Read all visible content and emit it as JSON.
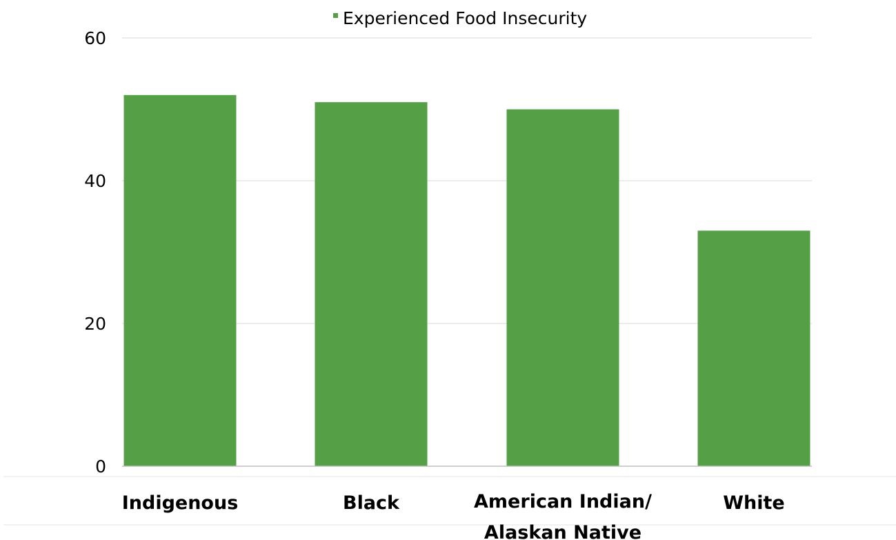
{
  "chart_data": {
    "type": "bar",
    "categories": [
      [
        "Indigenous"
      ],
      [
        "Black"
      ],
      [
        "American Indian/",
        "Alaskan Native"
      ],
      [
        "White"
      ]
    ],
    "series": [
      {
        "name": "Experienced Food Insecurity",
        "values": [
          52,
          51,
          50,
          33
        ],
        "color": "#55a047"
      }
    ],
    "ylim": [
      0,
      60
    ],
    "yticks": [
      0,
      20,
      40,
      60
    ],
    "grid": true,
    "legend": "top-center",
    "title": "",
    "xlabel": "",
    "ylabel": ""
  },
  "colors": {
    "bar": "#55a047",
    "grid": "#d9d9d9",
    "axis": "#bfbfbf",
    "separator": "#e6e6e6"
  }
}
